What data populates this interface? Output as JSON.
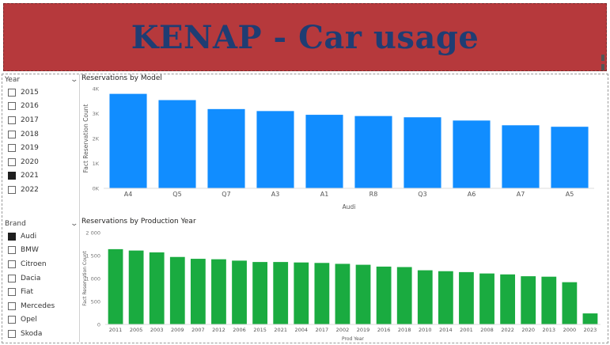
{
  "banner": {
    "title": "KENAP - Car usage"
  },
  "slicers": {
    "year": {
      "title": "Year",
      "items": [
        {
          "label": "2015",
          "checked": false
        },
        {
          "label": "2016",
          "checked": false
        },
        {
          "label": "2017",
          "checked": false
        },
        {
          "label": "2018",
          "checked": false
        },
        {
          "label": "2019",
          "checked": false
        },
        {
          "label": "2020",
          "checked": false
        },
        {
          "label": "2021",
          "checked": true
        },
        {
          "label": "2022",
          "checked": false
        }
      ]
    },
    "brand": {
      "title": "Brand",
      "items": [
        {
          "label": "Audi",
          "checked": true
        },
        {
          "label": "BMW",
          "checked": false
        },
        {
          "label": "Citroen",
          "checked": false
        },
        {
          "label": "Dacia",
          "checked": false
        },
        {
          "label": "Fiat",
          "checked": false
        },
        {
          "label": "Mercedes",
          "checked": false
        },
        {
          "label": "Opel",
          "checked": false
        },
        {
          "label": "Skoda",
          "checked": false
        }
      ]
    }
  },
  "chart_data": [
    {
      "type": "bar",
      "title": "Reservations by Model",
      "xlabel": "Audi",
      "ylabel": "Fact Reservation Count",
      "categories": [
        "A4",
        "Q5",
        "Q7",
        "A3",
        "A1",
        "R8",
        "Q3",
        "A6",
        "A7",
        "A5"
      ],
      "values": [
        3790,
        3540,
        3180,
        3100,
        2950,
        2900,
        2850,
        2720,
        2530,
        2470
      ],
      "ylim": [
        0,
        4000
      ],
      "yticks": [
        "0K",
        "1K",
        "2K",
        "3K",
        "4K"
      ],
      "color": "#118dff"
    },
    {
      "type": "bar",
      "title": "Reservations by Production Year",
      "xlabel": "Prod Year",
      "ylabel": "Fact Reservation Count",
      "categories": [
        "2011",
        "2005",
        "2003",
        "2009",
        "2007",
        "2012",
        "2006",
        "2015",
        "2021",
        "2004",
        "2017",
        "2002",
        "2019",
        "2016",
        "2018",
        "2010",
        "2014",
        "2001",
        "2008",
        "2022",
        "2020",
        "2013",
        "2000",
        "2023"
      ],
      "values": [
        1640,
        1610,
        1570,
        1470,
        1430,
        1420,
        1390,
        1360,
        1360,
        1350,
        1340,
        1320,
        1300,
        1260,
        1250,
        1180,
        1160,
        1140,
        1110,
        1090,
        1050,
        1040,
        920,
        240
      ],
      "ylim": [
        0,
        2000
      ],
      "yticks": [
        "0",
        "500",
        "1 000",
        "1 500",
        "2 000"
      ],
      "color": "#1aab40"
    }
  ]
}
